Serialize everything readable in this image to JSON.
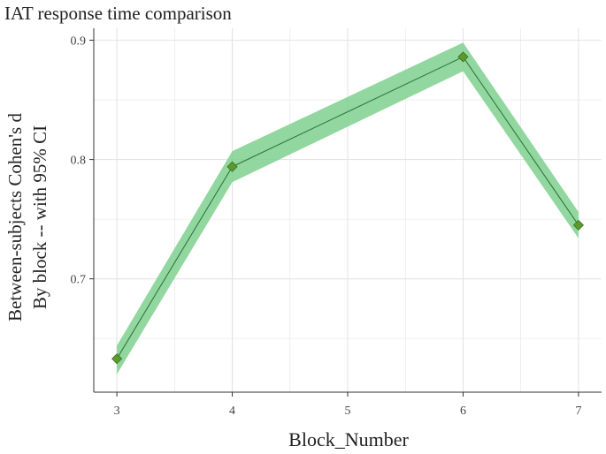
{
  "chart_data": {
    "type": "line",
    "title": "IAT response time comparison",
    "xlabel": "Block_Number",
    "ylabel_lines": [
      "Between-subjects Cohen's d",
      "By block -- with 95% CI"
    ],
    "x": [
      3,
      4,
      5,
      6,
      7
    ],
    "series": [
      {
        "name": "Cohen's d",
        "x": [
          3,
          4,
          6,
          7
        ],
        "values": [
          0.633,
          0.794,
          0.886,
          0.745
        ],
        "ci_lower": [
          0.62,
          0.781,
          0.874,
          0.734
        ],
        "ci_upper": [
          0.644,
          0.807,
          0.898,
          0.756
        ]
      }
    ],
    "xticks": [
      3,
      4,
      5,
      6,
      7
    ],
    "yticks": [
      0.7,
      0.8,
      0.9
    ],
    "xtick_labels": [
      "3",
      "4",
      "5",
      "6",
      "7"
    ],
    "ytick_labels": [
      "0.7",
      "0.8",
      "0.9"
    ],
    "xlim": [
      2.8,
      7.2
    ],
    "ylim": [
      0.605,
      0.91
    ],
    "grid": true,
    "colors": {
      "ribbon": "#7fd08f",
      "line": "#2e7a3a",
      "marker": "#5c9a2e",
      "marker_stroke": "#3e6e1e",
      "grid": "#e4e4e4",
      "axis": "#333333",
      "text": "#222222"
    }
  }
}
